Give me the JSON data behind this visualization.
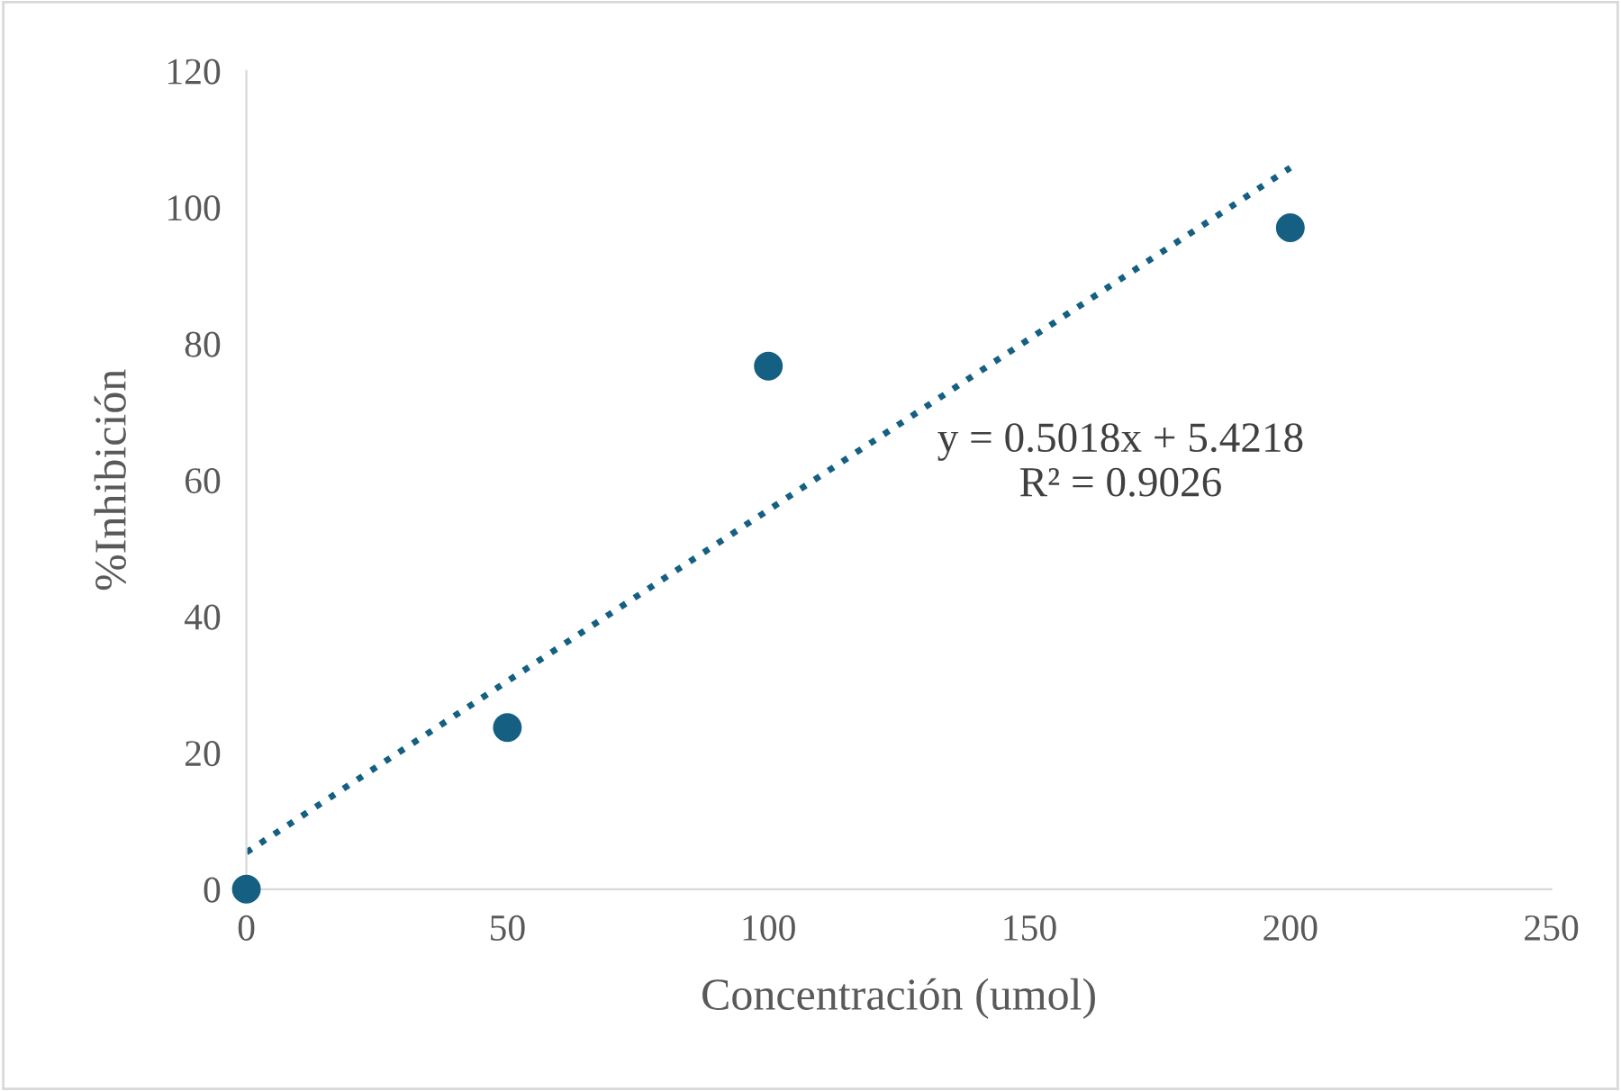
{
  "chart_data": {
    "type": "scatter",
    "xlabel": "Concentración (umol)",
    "ylabel": "%Inhibición",
    "xlim": [
      0,
      250
    ],
    "ylim": [
      0,
      120
    ],
    "xticks": [
      0,
      50,
      100,
      150,
      200,
      250
    ],
    "yticks": [
      0,
      20,
      40,
      60,
      80,
      100,
      120
    ],
    "grid": false,
    "legend": false,
    "series": [
      {
        "marker": "circle",
        "color": "#156082",
        "x": [
          0,
          50,
          100,
          200
        ],
        "values": [
          0,
          23.7,
          76.7,
          97
        ]
      },
      {
        "type": "line",
        "color": "#156082",
        "line_style": "dotted",
        "marker": "none",
        "x": [
          0,
          200
        ],
        "values": [
          5.4,
          105.8
        ]
      }
    ],
    "annotations": [
      "y = 0.5018x + 5.4218\nR² = 0.9026"
    ]
  }
}
